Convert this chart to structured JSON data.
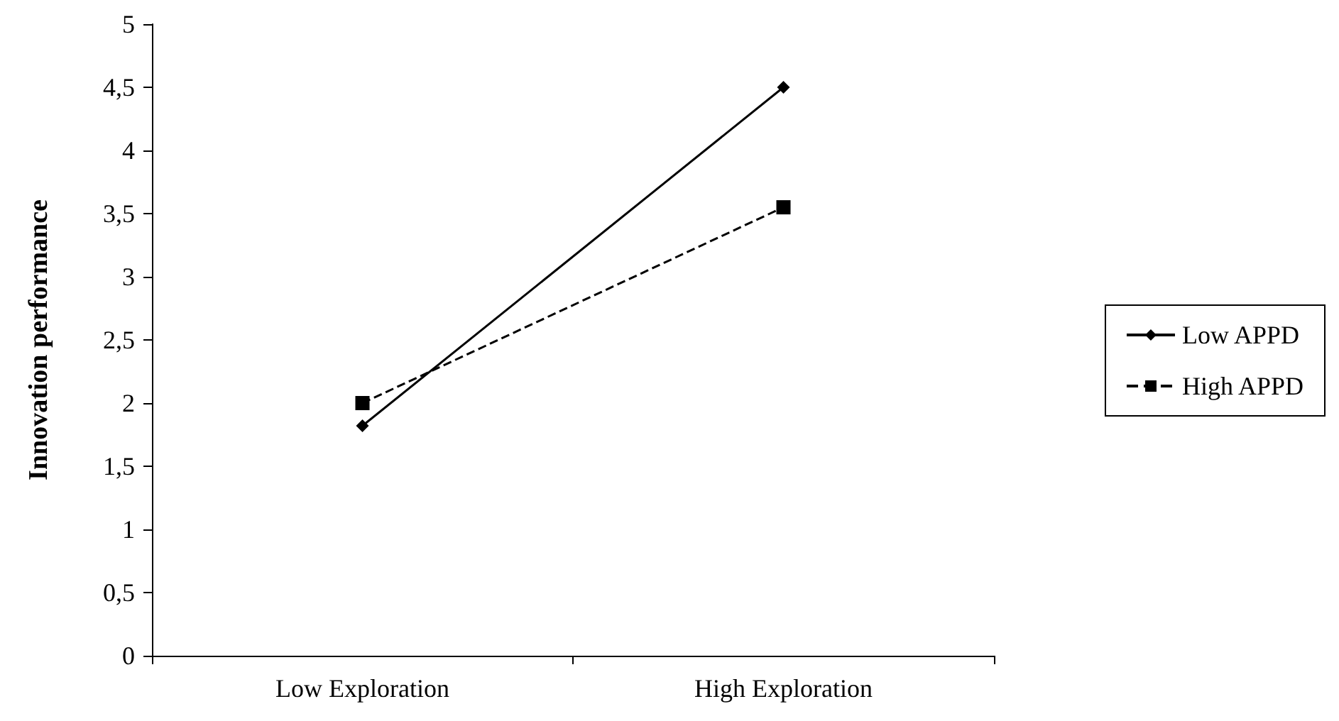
{
  "chart_data": {
    "type": "line",
    "ylabel": "Innovation performance",
    "categories": [
      "Low Exploration",
      "High Exploration"
    ],
    "series": [
      {
        "name": "Low APPD",
        "color": "#000000",
        "values": [
          1.82,
          4.5
        ],
        "marker": "diamond",
        "line_style": "solid"
      },
      {
        "name": "High APPD",
        "color": "#000000",
        "values": [
          2.0,
          3.55
        ],
        "marker": "square",
        "line_style": "dashed"
      }
    ],
    "ylim": [
      0,
      5
    ],
    "yticks": [
      0,
      {
        "value": 0.5,
        "label": "0,5"
      },
      1,
      {
        "value": 1.5,
        "label": "1,5"
      },
      2,
      {
        "value": 2.5,
        "label": "2,5"
      },
      3,
      {
        "value": 3.5,
        "label": "3,5"
      },
      4,
      {
        "value": 4.5,
        "label": "4,5"
      },
      5
    ],
    "grid": false,
    "legend": "right"
  }
}
